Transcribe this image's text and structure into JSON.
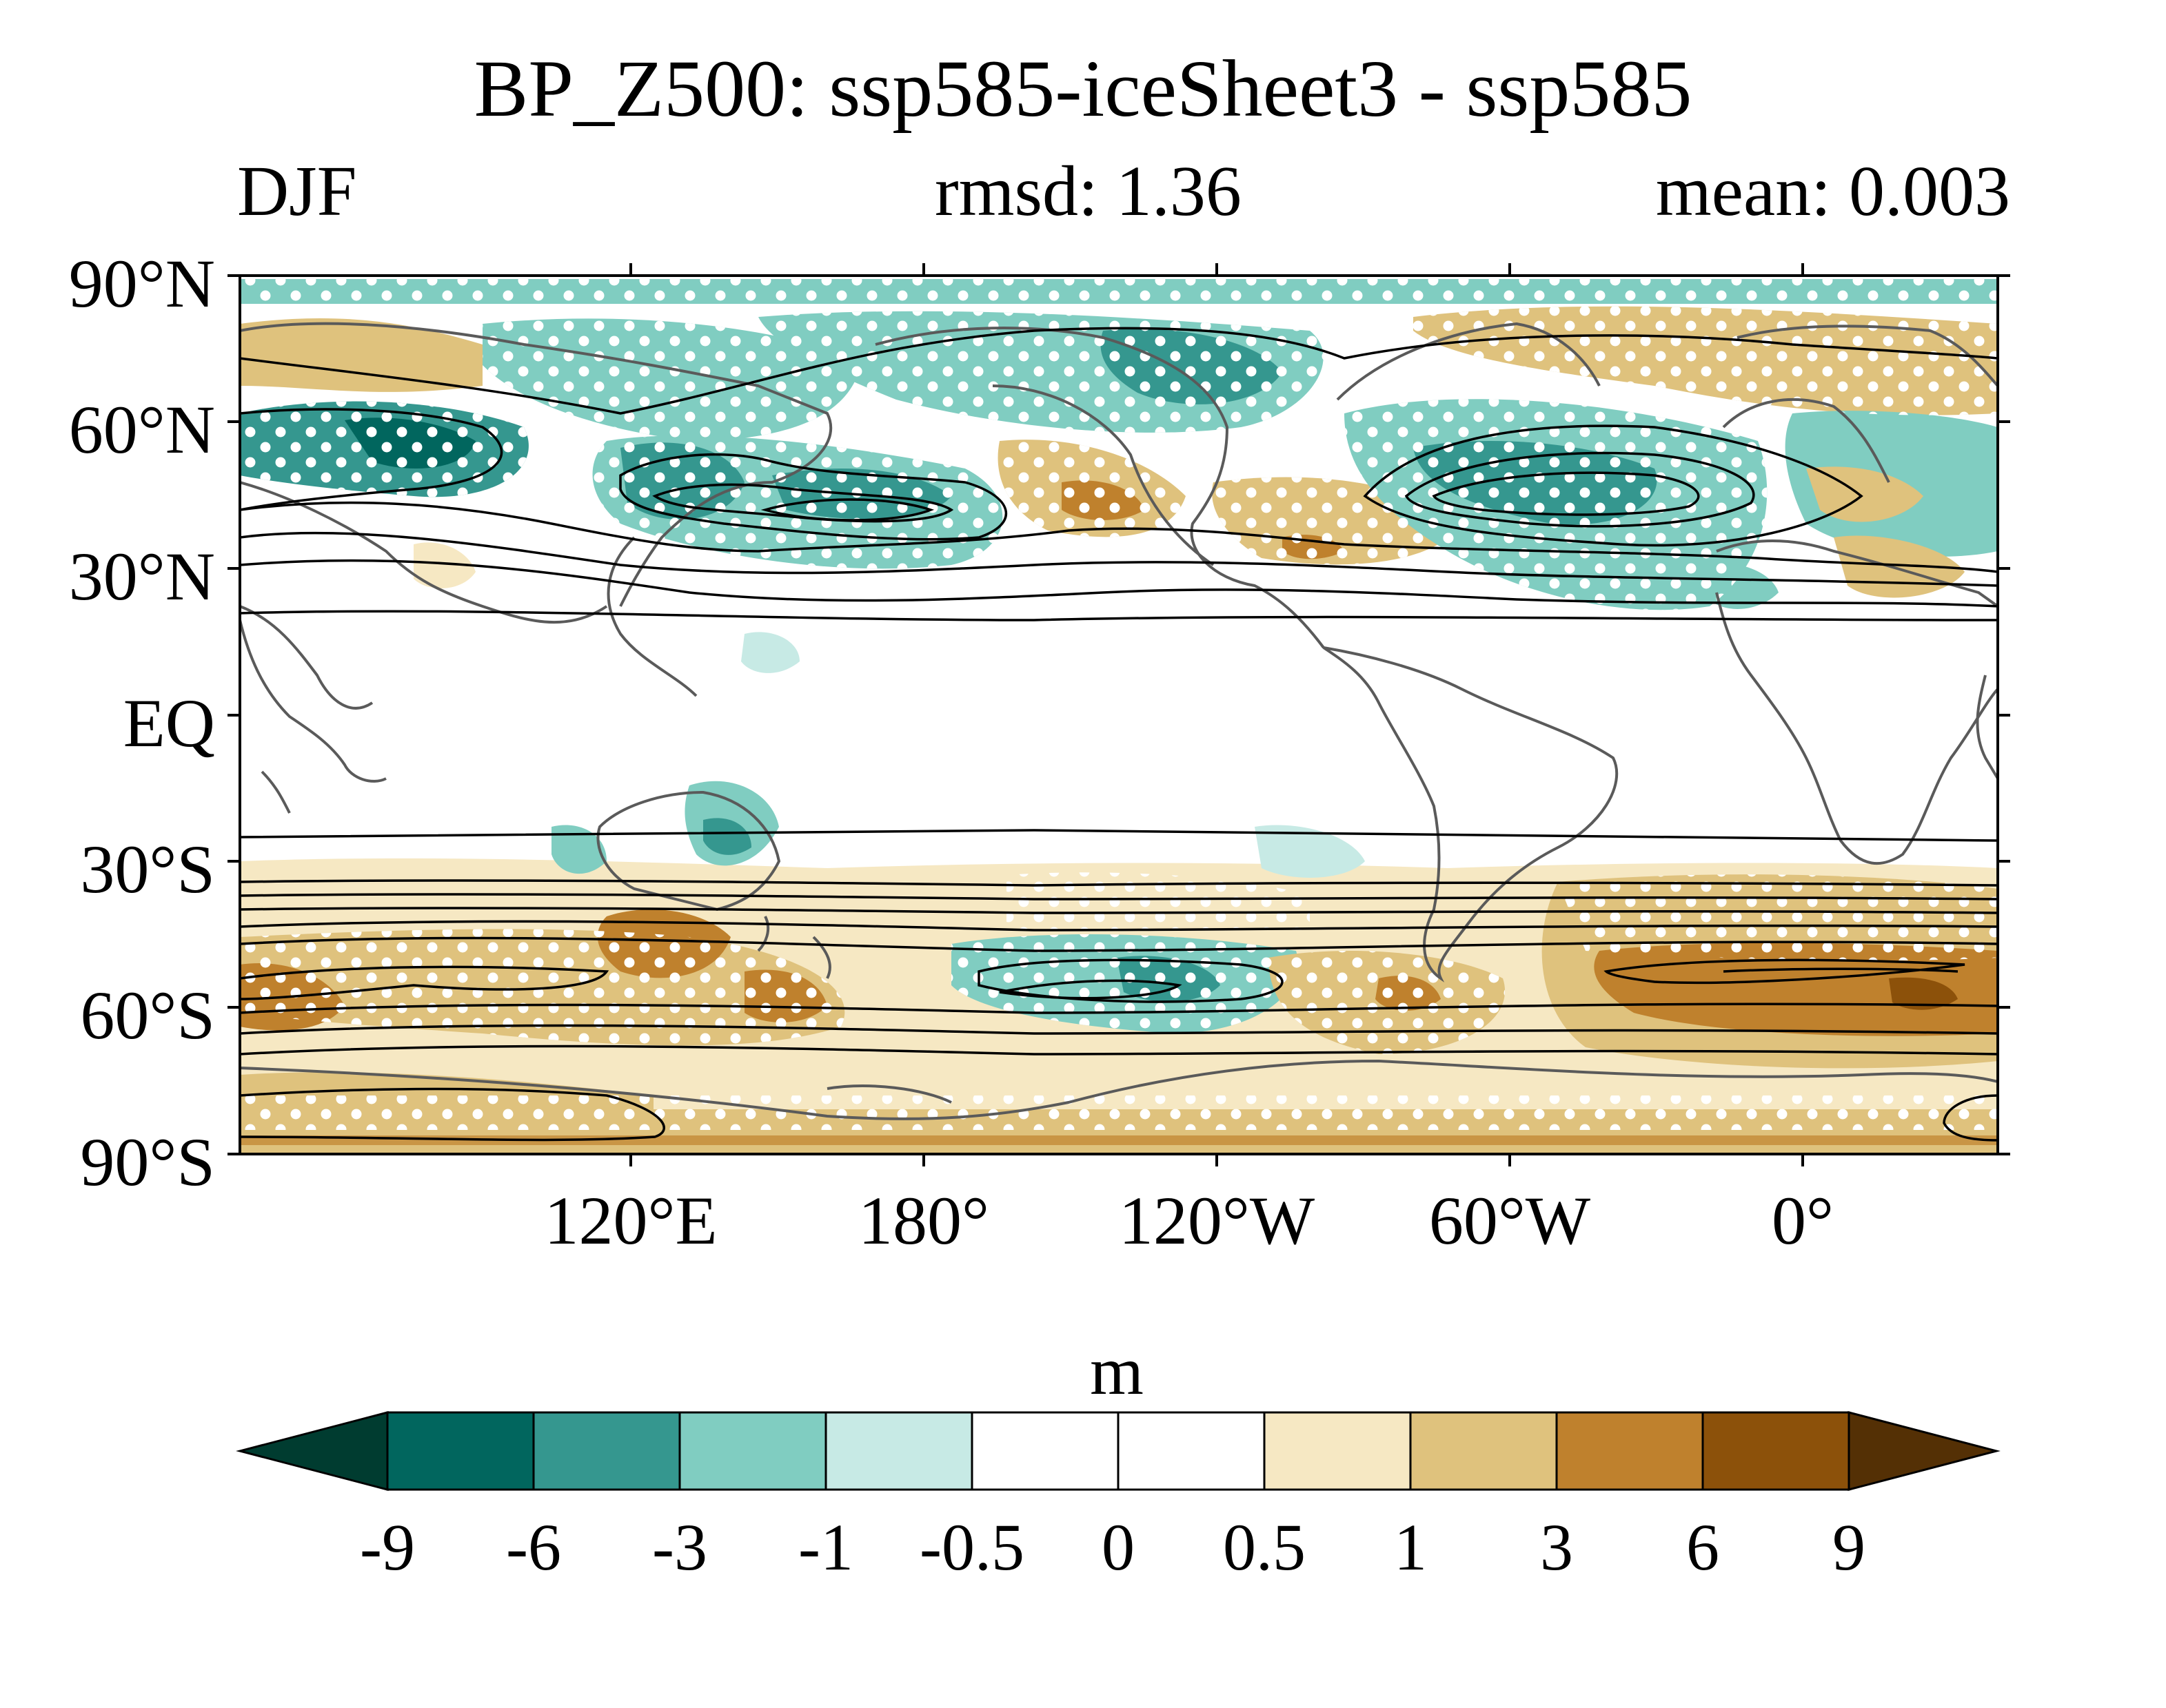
{
  "title": "BP_Z500: ssp585-iceSheet3 - ssp585",
  "season": "DJF",
  "rmsd": "rmsd: 1.36",
  "mean": "mean: 0.003",
  "units": "m",
  "lat_labels": [
    "90°N",
    "60°N",
    "30°N",
    "EQ",
    "30°S",
    "60°S",
    "90°S"
  ],
  "lon_labels": [
    "120°E",
    "180°",
    "120°W",
    "60°W",
    "0°"
  ],
  "colorbar": {
    "levels": [
      "-9",
      "-6",
      "-3",
      "-1",
      "-0.5",
      "0",
      "0.5",
      "1",
      "3",
      "6",
      "9"
    ],
    "colors": [
      "#003c30",
      "#01665e",
      "#35978f",
      "#80cdc1",
      "#c7eae5",
      "#ffffff",
      "#ffffff",
      "#f6e8c3",
      "#dfc27d",
      "#bf812d",
      "#8c510a",
      "#543005"
    ]
  },
  "chart_data": {
    "type": "heatmap",
    "map_extent": {
      "lon_start": 40,
      "lon_end": 400,
      "lat_min": -90,
      "lat_max": 90
    },
    "projection": "cylindrical equidistant",
    "fill_variable": "BP_Z500 difference (ssp585-iceSheet3 - ssp585)",
    "contours": "climatological Z500 overlay",
    "stippling": "white dots (significant regions)"
  },
  "colors": {
    "continent_outline": "#555555",
    "contour": "#000000",
    "stipple": "#ffffff"
  }
}
